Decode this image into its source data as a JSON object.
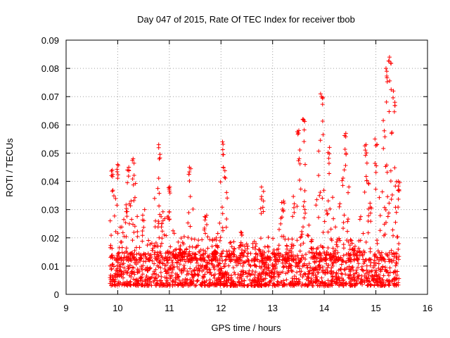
{
  "chart_data": {
    "type": "scatter",
    "title": "Day 047 of 2015, Rate Of TEC Index for receiver tbob",
    "xlabel": "GPS time / hours",
    "ylabel": "ROTI / TECUs",
    "xlim": [
      9,
      16
    ],
    "ylim": [
      0,
      0.09
    ],
    "xticks": [
      "9",
      "10",
      "11",
      "12",
      "13",
      "14",
      "15",
      "16"
    ],
    "yticks": [
      "0",
      "0.01",
      "0.02",
      "0.03",
      "0.04",
      "0.05",
      "0.06",
      "0.07",
      "0.08",
      "0.09"
    ],
    "grid": true,
    "marker": "+",
    "color": "#ff0000",
    "x_range_observed": [
      9.85,
      15.45
    ],
    "envelope": [
      {
        "x": 9.9,
        "baseline": 0.004,
        "peak": 0.044
      },
      {
        "x": 10.0,
        "baseline": 0.004,
        "peak": 0.046
      },
      {
        "x": 10.2,
        "baseline": 0.005,
        "peak": 0.045
      },
      {
        "x": 10.3,
        "baseline": 0.005,
        "peak": 0.048
      },
      {
        "x": 10.5,
        "baseline": 0.005,
        "peak": 0.03
      },
      {
        "x": 10.8,
        "baseline": 0.005,
        "peak": 0.053
      },
      {
        "x": 11.0,
        "baseline": 0.005,
        "peak": 0.038
      },
      {
        "x": 11.4,
        "baseline": 0.005,
        "peak": 0.045
      },
      {
        "x": 11.7,
        "baseline": 0.005,
        "peak": 0.028
      },
      {
        "x": 12.05,
        "baseline": 0.004,
        "peak": 0.054
      },
      {
        "x": 12.4,
        "baseline": 0.005,
        "peak": 0.022
      },
      {
        "x": 12.8,
        "baseline": 0.005,
        "peak": 0.038
      },
      {
        "x": 13.2,
        "baseline": 0.005,
        "peak": 0.033
      },
      {
        "x": 13.5,
        "baseline": 0.005,
        "peak": 0.058
      },
      {
        "x": 13.6,
        "baseline": 0.006,
        "peak": 0.062
      },
      {
        "x": 13.95,
        "baseline": 0.005,
        "peak": 0.071
      },
      {
        "x": 14.1,
        "baseline": 0.005,
        "peak": 0.052
      },
      {
        "x": 14.4,
        "baseline": 0.005,
        "peak": 0.057
      },
      {
        "x": 14.8,
        "baseline": 0.005,
        "peak": 0.053
      },
      {
        "x": 15.0,
        "baseline": 0.004,
        "peak": 0.055
      },
      {
        "x": 15.2,
        "baseline": 0.004,
        "peak": 0.08
      },
      {
        "x": 15.27,
        "baseline": 0.004,
        "peak": 0.084
      },
      {
        "x": 15.35,
        "baseline": 0.004,
        "peak": 0.072
      },
      {
        "x": 15.45,
        "baseline": 0.004,
        "peak": 0.04
      }
    ]
  }
}
